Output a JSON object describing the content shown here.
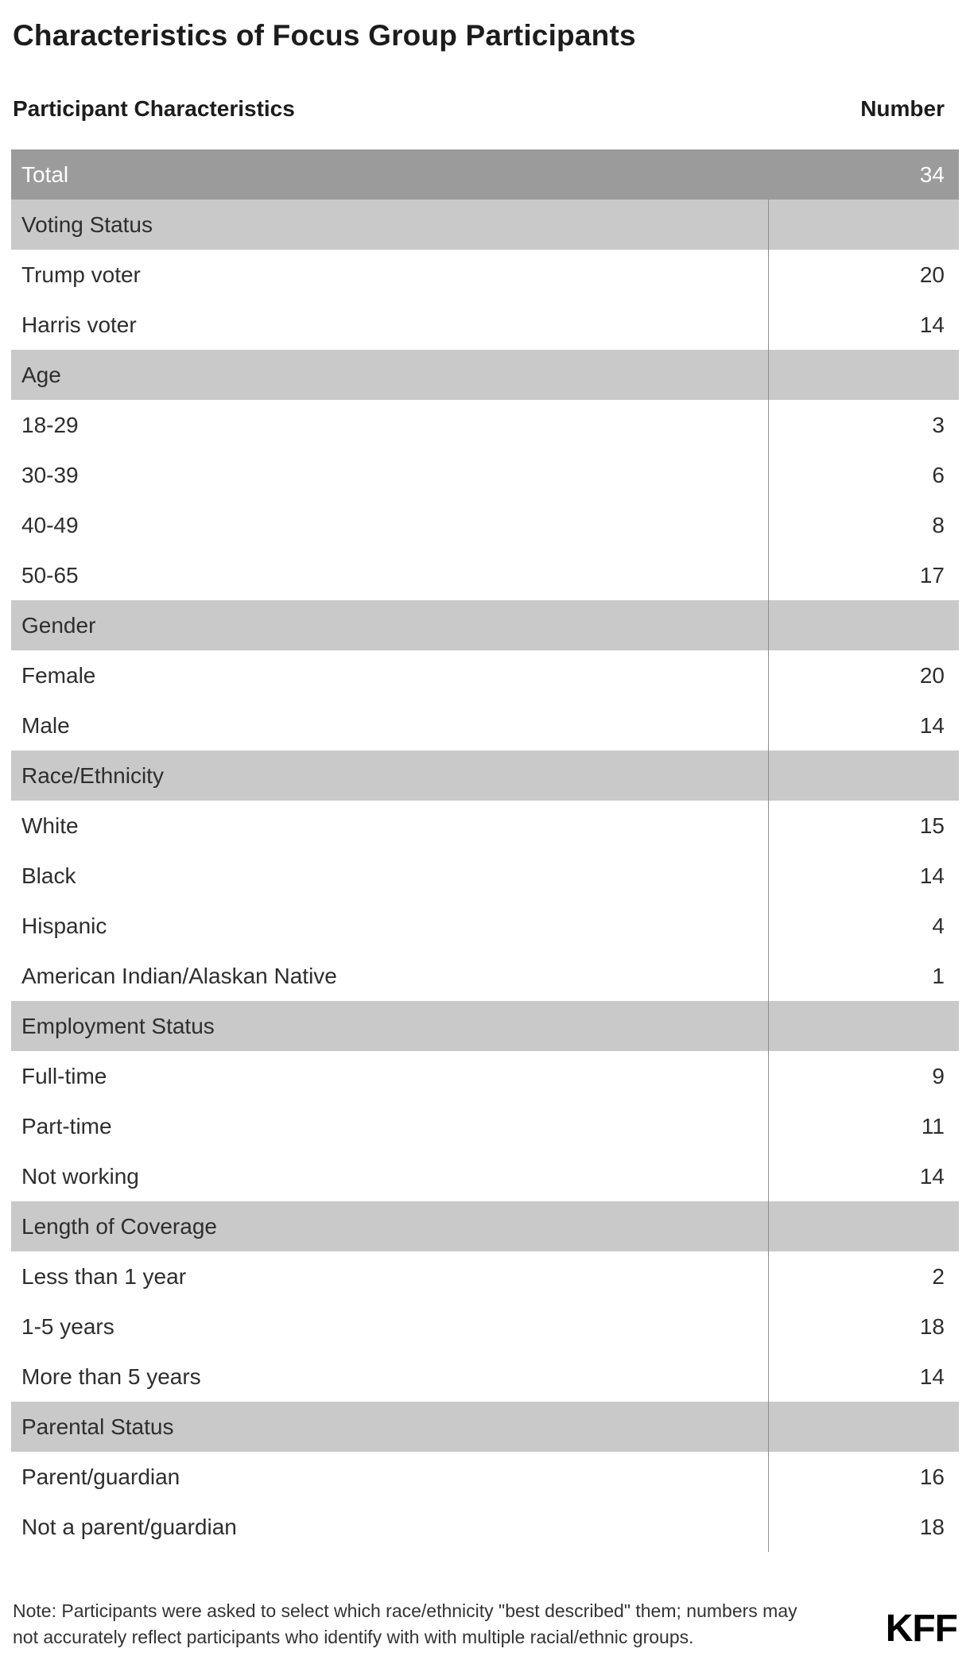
{
  "title": "Characteristics of Focus Group Participants",
  "table": {
    "col1_header": "Participant Characteristics",
    "col2_header": "Number",
    "total_row": {
      "label": "Total",
      "value": "34"
    },
    "sections": [
      {
        "header": "Voting Status",
        "rows": [
          {
            "label": "Trump voter",
            "value": "20"
          },
          {
            "label": "Harris voter",
            "value": "14"
          }
        ]
      },
      {
        "header": "Age",
        "rows": [
          {
            "label": "18-29",
            "value": "3"
          },
          {
            "label": "30-39",
            "value": "6"
          },
          {
            "label": "40-49",
            "value": "8"
          },
          {
            "label": "50-65",
            "value": "17"
          }
        ]
      },
      {
        "header": "Gender",
        "rows": [
          {
            "label": "Female",
            "value": "20"
          },
          {
            "label": "Male",
            "value": "14"
          }
        ]
      },
      {
        "header": "Race/Ethnicity",
        "rows": [
          {
            "label": "White",
            "value": "15"
          },
          {
            "label": "Black",
            "value": "14"
          },
          {
            "label": "Hispanic",
            "value": "4"
          },
          {
            "label": "American Indian/Alaskan Native",
            "value": "1"
          }
        ]
      },
      {
        "header": "Employment Status",
        "rows": [
          {
            "label": "Full-time",
            "value": "9"
          },
          {
            "label": "Part-time",
            "value": "11"
          },
          {
            "label": "Not working",
            "value": "14"
          }
        ]
      },
      {
        "header": "Length of Coverage",
        "rows": [
          {
            "label": "Less than 1 year",
            "value": "2"
          },
          {
            "label": "1-5 years",
            "value": "18"
          },
          {
            "label": "More than 5 years",
            "value": "14"
          }
        ]
      },
      {
        "header": "Parental Status",
        "rows": [
          {
            "label": "Parent/guardian",
            "value": "16"
          },
          {
            "label": "Not a parent/guardian",
            "value": "18"
          }
        ]
      }
    ]
  },
  "note": "Note: Participants were asked to select which race/ethnicity \"best described\" them; numbers may not accurately reflect participants who identify with with multiple racial/ethnic groups.",
  "logo": "KFF",
  "colors": {
    "total_row_bg": "#9b9b9b",
    "total_row_text": "#ffffff",
    "section_row_bg": "#c9c9c9",
    "body_text": "#2e2e2e",
    "divider": "#8f8f8f"
  },
  "chart_data": {
    "type": "table",
    "title": "Characteristics of Focus Group Participants",
    "columns": [
      "Participant Characteristics",
      "Number"
    ],
    "total": {
      "label": "Total",
      "value": 34
    },
    "groups": [
      {
        "group": "Voting Status",
        "categories": [
          "Trump voter",
          "Harris voter"
        ],
        "values": [
          20,
          14
        ]
      },
      {
        "group": "Age",
        "categories": [
          "18-29",
          "30-39",
          "40-49",
          "50-65"
        ],
        "values": [
          3,
          6,
          8,
          17
        ]
      },
      {
        "group": "Gender",
        "categories": [
          "Female",
          "Male"
        ],
        "values": [
          20,
          14
        ]
      },
      {
        "group": "Race/Ethnicity",
        "categories": [
          "White",
          "Black",
          "Hispanic",
          "American Indian/Alaskan Native"
        ],
        "values": [
          15,
          14,
          4,
          1
        ]
      },
      {
        "group": "Employment Status",
        "categories": [
          "Full-time",
          "Part-time",
          "Not working"
        ],
        "values": [
          9,
          11,
          14
        ]
      },
      {
        "group": "Length of Coverage",
        "categories": [
          "Less than 1 year",
          "1-5 years",
          "More than 5 years"
        ],
        "values": [
          2,
          18,
          14
        ]
      },
      {
        "group": "Parental Status",
        "categories": [
          "Parent/guardian",
          "Not a parent/guardian"
        ],
        "values": [
          16,
          18
        ]
      }
    ]
  }
}
